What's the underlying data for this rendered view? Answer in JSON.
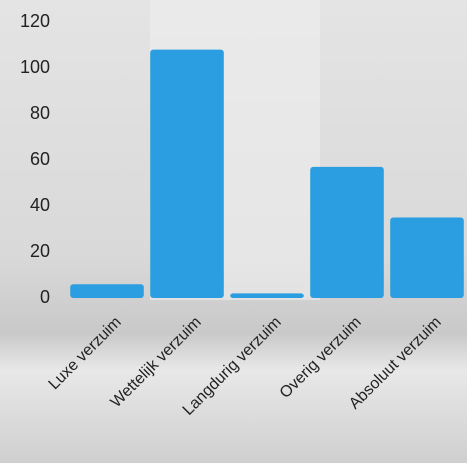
{
  "chart_data": {
    "type": "bar",
    "categories": [
      "Luxe verzuim",
      "Wettelijk verzuim",
      "Langdurig verzuim",
      "Overig verzuim",
      "Absoluut verzuim"
    ],
    "values": [
      6,
      108,
      2,
      57,
      35
    ],
    "color": "#2a9ee0",
    "ylim": [
      0,
      120
    ],
    "yticks": [
      0,
      20,
      40,
      60,
      80,
      100,
      120
    ]
  }
}
